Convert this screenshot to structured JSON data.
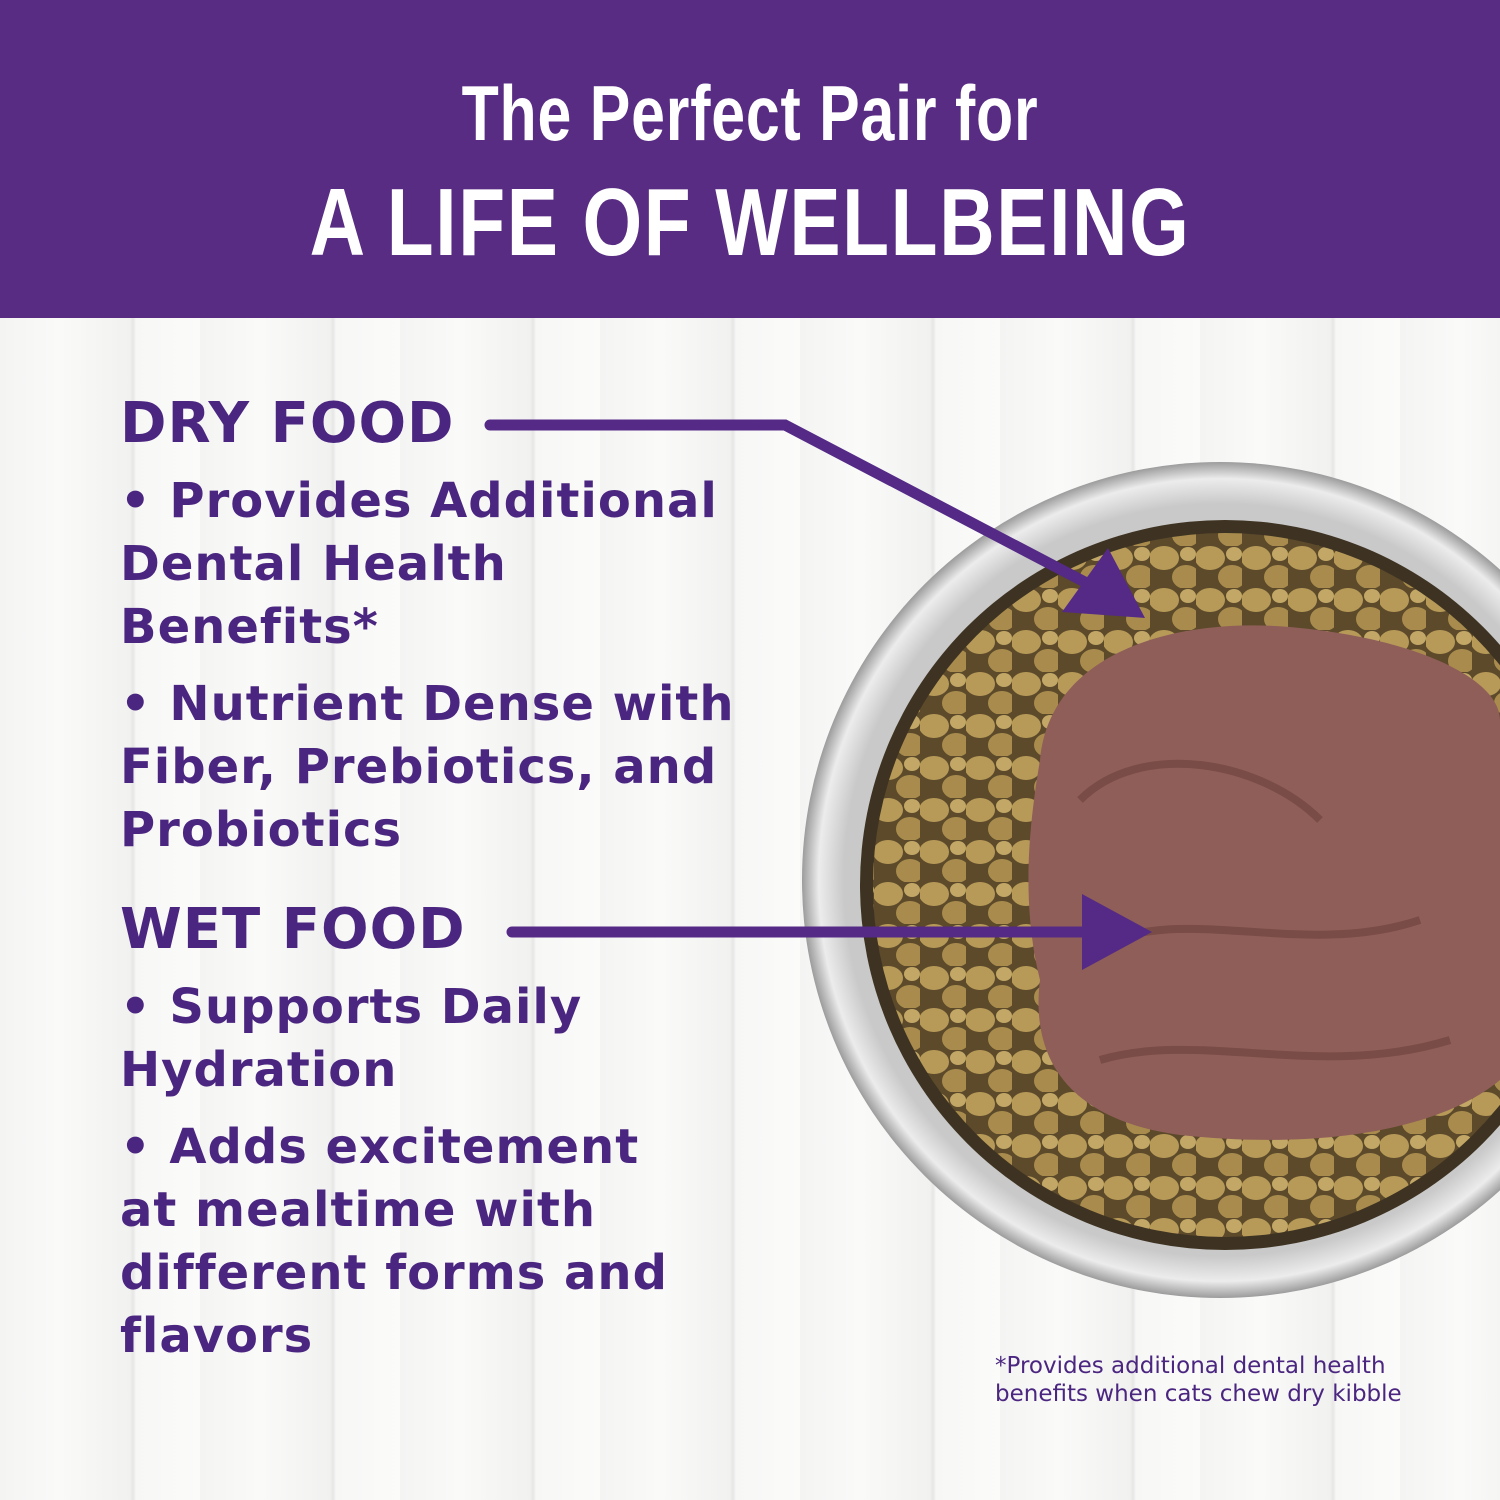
{
  "header": {
    "line1": "The Perfect Pair for",
    "line2": "A LIFE OF WELLBEING",
    "background": "#582c83"
  },
  "dry": {
    "heading": "DRY FOOD",
    "bullets": [
      "• Provides Additional Dental Health Benefits*",
      "• Nutrient Dense with Fiber, Prebiotics, and Probiotics"
    ]
  },
  "wet": {
    "heading": "WET FOOD",
    "bullets": [
      "• Supports Daily Hydration",
      "• Adds excitement at mealtime with different forms and flavors"
    ]
  },
  "footnote": {
    "line1": "*Provides additional dental health",
    "line2": "benefits when cats chew dry kibble"
  },
  "colors": {
    "text": "#4b2680",
    "arrow": "#542a86"
  }
}
